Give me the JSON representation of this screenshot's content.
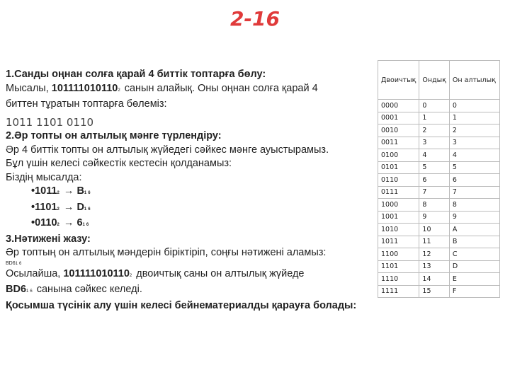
{
  "title": "2-16",
  "body": {
    "lines": [
      [
        "1.Санды оңнан солға қарай 4 биттік топтарға бөлу:"
      ],
      [
        "Мысалы, ",
        "101111010110",
        "2",
        " санын алайық. Оны оңнан солға қарай 4"
      ],
      [
        "биттен тұратын топтарға бөлеміз:"
      ],
      [
        "1011 1101 0110"
      ],
      [
        "2.Әр топты он алтылық мәнге түрлендіру:"
      ],
      [
        "Әр 4 биттік топты он алтылық жүйедегі сәйкес мәнге ауыстырамыз."
      ],
      [
        "Бұл үшін келесі сәйкестік кестесін қолданамыз:"
      ],
      [
        "Біздің мысалда:"
      ],
      [
        "•1011",
        "2",
        " → B",
        "16"
      ],
      [
        "•1101",
        "2",
        " → D",
        "16"
      ],
      [
        "•0110",
        "2",
        " → 6",
        "16"
      ],
      [
        "3.Нәтижені жазу:"
      ],
      [
        "Әр топтың он алтылық мәндерін біріктіріп, соңғы нәтижені аламыз:"
      ],
      [
        "BD6",
        "16"
      ],
      [
        "Осылайша, ",
        "101111010110",
        "2",
        " двоичтық саны он алтылық жүйеде"
      ],
      [
        "BD6",
        "16",
        " санына сәйкес келеді."
      ],
      [
        "Қосымша түсінік алу үшін келесі бейнематериалды қарауға болады:"
      ]
    ]
  },
  "table": {
    "header": [
      "Двоичтық",
      "Ондық",
      "Он алтылық"
    ],
    "rows": [
      [
        "0000",
        "0",
        "0"
      ],
      [
        "0001",
        "1",
        "1"
      ],
      [
        "0010",
        "2",
        "2"
      ],
      [
        "0011",
        "3",
        "3"
      ],
      [
        "0100",
        "4",
        "4"
      ],
      [
        "0101",
        "5",
        "5"
      ],
      [
        "0110",
        "6",
        "6"
      ],
      [
        "0111",
        "7",
        "7"
      ],
      [
        "1000",
        "8",
        "8"
      ],
      [
        "1001",
        "9",
        "9"
      ],
      [
        "1010",
        "10",
        "A"
      ],
      [
        "1011",
        "11",
        "B"
      ],
      [
        "1100",
        "12",
        "C"
      ],
      [
        "1101",
        "13",
        "D"
      ],
      [
        "1110",
        "14",
        "E"
      ],
      [
        "1111",
        "15",
        "F"
      ]
    ]
  }
}
